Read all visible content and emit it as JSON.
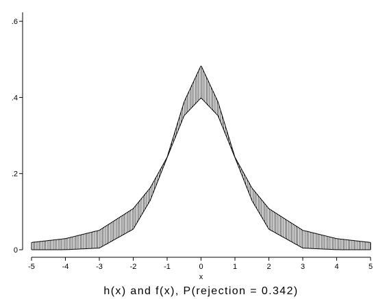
{
  "chart_data": {
    "type": "area",
    "title": "",
    "caption": "h(x) and f(x), P(rejection = 0.342)",
    "xlabel": "x",
    "ylabel": "",
    "xlim": [
      -5,
      5
    ],
    "ylim": [
      0,
      0.62
    ],
    "x_ticks": [
      -5,
      -4,
      -3,
      -2,
      -1,
      0,
      1,
      2,
      3,
      4,
      5
    ],
    "x_tick_labels": [
      "-5",
      "-4",
      "-3",
      "-2",
      "-1",
      "0",
      "1",
      "2",
      "3",
      "4",
      "5"
    ],
    "y_ticks": [
      0,
      0.2,
      0.4,
      0.6
    ],
    "y_tick_labels": [
      "0",
      ".2",
      ".4",
      ".6"
    ],
    "grid": false,
    "fill": "vertical hatch between curves",
    "series": [
      {
        "x": [
          -5,
          -4,
          -3,
          -2,
          -1.5,
          -1,
          -0.5,
          0,
          0.5,
          1,
          1.5,
          2,
          3,
          4,
          5
        ],
        "values": [
          0.0191,
          0.0292,
          0.0511,
          0.108,
          0.1624,
          0.243,
          0.3884,
          0.4839,
          0.3884,
          0.243,
          0.1624,
          0.108,
          0.0511,
          0.0292,
          0.0191
        ]
      },
      {
        "x": [
          -5,
          -4,
          -3,
          -2,
          -1.5,
          -1,
          -0.5,
          0,
          0.5,
          1,
          1.5,
          2,
          3,
          4,
          5
        ],
        "values": [
          0.0,
          0.0001,
          0.0044,
          0.054,
          0.1295,
          0.242,
          0.3521,
          0.3989,
          0.3521,
          0.242,
          0.1295,
          0.054,
          0.0044,
          0.0001,
          0.0
        ]
      }
    ],
    "colors": {
      "line": "#000000",
      "background": "#ffffff"
    }
  }
}
